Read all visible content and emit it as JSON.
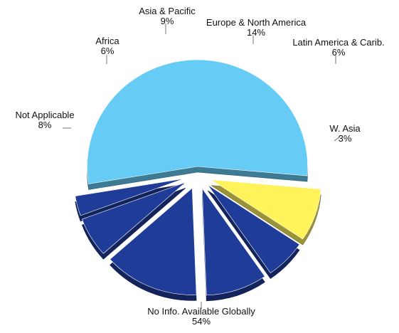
{
  "chart_data": {
    "type": "pie",
    "style": "3d-exploded",
    "slices": [
      {
        "label": "No Info. Available Globally",
        "pct_label": "54%",
        "value": 54,
        "color": "#66CCF5"
      },
      {
        "label": "W. Asia",
        "pct_label": "3%",
        "value": 3,
        "color": "#1F3C99"
      },
      {
        "label": "Latin America & Carib.",
        "pct_label": "6%",
        "value": 6,
        "color": "#1F3C99"
      },
      {
        "label": "Europe & North America",
        "pct_label": "14%",
        "value": 14,
        "color": "#1F3C99"
      },
      {
        "label": "Asia & Pacific",
        "pct_label": "9%",
        "value": 9,
        "color": "#1F3C99"
      },
      {
        "label": "Africa",
        "pct_label": "6%",
        "value": 6,
        "color": "#1F3C99"
      },
      {
        "label": "Not Applicable",
        "pct_label": "8%",
        "value": 8,
        "color": "#FFF35C"
      }
    ]
  }
}
